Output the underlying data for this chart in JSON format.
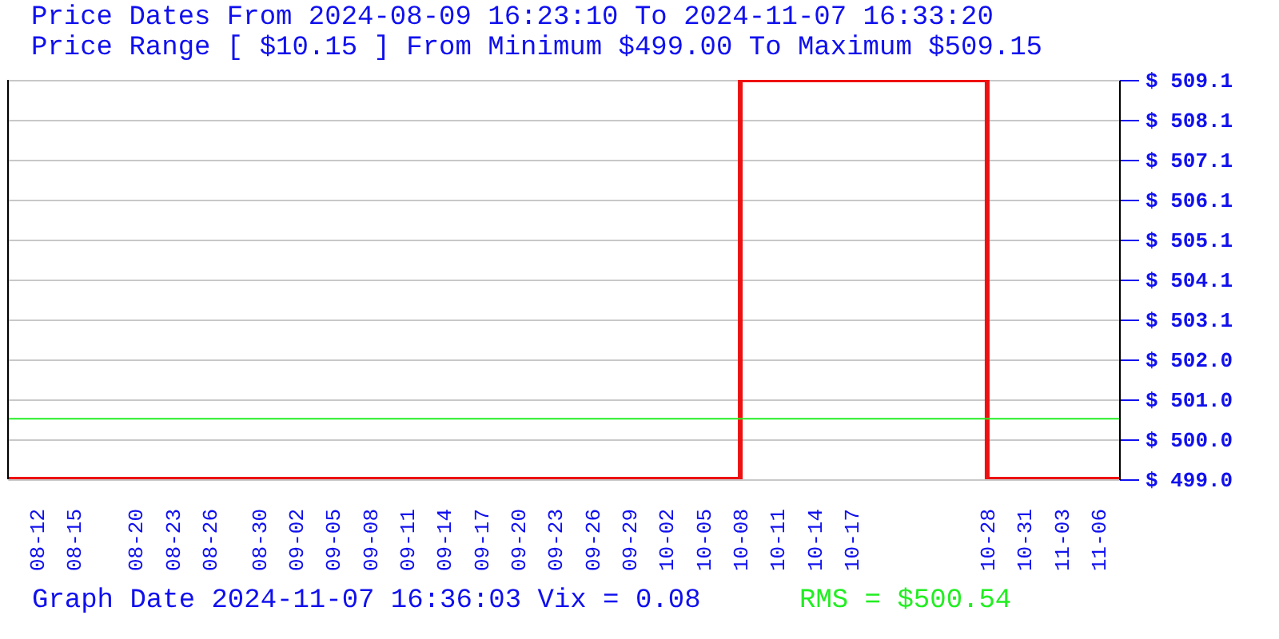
{
  "chart_data": {
    "type": "step",
    "title": "Price Dates From 2024-08-09 16:23:10 To 2024-11-07 16:33:20",
    "subtitle": "Price Range [ $10.15 ] From Minimum $499.00 To Maximum $509.15",
    "x": [
      "2024-08-09T16:23",
      "2024-10-08",
      "2024-10-28",
      "2024-11-07T16:33"
    ],
    "series": [
      {
        "color": "#ee1111",
        "values": [
          499.0,
          509.15,
          499.0,
          499.0
        ]
      }
    ],
    "xlim": [
      "2024-08-09T16:23",
      "2024-11-07T16:33"
    ],
    "xticks": [
      {
        "value": "2024-08-12",
        "label": "08-12"
      },
      {
        "value": "2024-08-15",
        "label": "08-15"
      },
      {
        "value": "2024-08-20",
        "label": "08-20"
      },
      {
        "value": "2024-08-23",
        "label": "08-23"
      },
      {
        "value": "2024-08-26",
        "label": "08-26"
      },
      {
        "value": "2024-08-30",
        "label": "08-30"
      },
      {
        "value": "2024-09-02",
        "label": "09-02"
      },
      {
        "value": "2024-09-05",
        "label": "09-05"
      },
      {
        "value": "2024-09-08",
        "label": "09-08"
      },
      {
        "value": "2024-09-11",
        "label": "09-11"
      },
      {
        "value": "2024-09-14",
        "label": "09-14"
      },
      {
        "value": "2024-09-17",
        "label": "09-17"
      },
      {
        "value": "2024-09-20",
        "label": "09-20"
      },
      {
        "value": "2024-09-23",
        "label": "09-23"
      },
      {
        "value": "2024-09-26",
        "label": "09-26"
      },
      {
        "value": "2024-09-29",
        "label": "09-29"
      },
      {
        "value": "2024-10-02",
        "label": "10-02"
      },
      {
        "value": "2024-10-05",
        "label": "10-05"
      },
      {
        "value": "2024-10-08",
        "label": "10-08"
      },
      {
        "value": "2024-10-11",
        "label": "10-11"
      },
      {
        "value": "2024-10-14",
        "label": "10-14"
      },
      {
        "value": "2024-10-17",
        "label": "10-17"
      },
      {
        "value": "2024-10-28",
        "label": "10-28"
      },
      {
        "value": "2024-10-31",
        "label": "10-31"
      },
      {
        "value": "2024-11-03",
        "label": "11-03"
      },
      {
        "value": "2024-11-06",
        "label": "11-06"
      }
    ],
    "ylim": [
      499.0,
      509.15
    ],
    "yticks": [
      {
        "value": 499.0,
        "label": "$ 499.0"
      },
      {
        "value": 500.015,
        "label": "$ 500.0"
      },
      {
        "value": 501.03,
        "label": "$ 501.0"
      },
      {
        "value": 502.045,
        "label": "$ 502.0"
      },
      {
        "value": 503.06,
        "label": "$ 503.1"
      },
      {
        "value": 504.075,
        "label": "$ 504.1"
      },
      {
        "value": 505.09,
        "label": "$ 505.1"
      },
      {
        "value": 506.105,
        "label": "$ 506.1"
      },
      {
        "value": 507.12,
        "label": "$ 507.1"
      },
      {
        "value": 508.135,
        "label": "$ 508.1"
      },
      {
        "value": 509.15,
        "label": "$ 509.1"
      }
    ],
    "grid": "y",
    "ref_lines": [
      {
        "axis": "y",
        "value": 500.54,
        "color": "#22ee22"
      }
    ],
    "annotations": [
      "Graph Date 2024-11-07 16:36:03 Vix = 0.08",
      "RMS = $500.54"
    ]
  }
}
